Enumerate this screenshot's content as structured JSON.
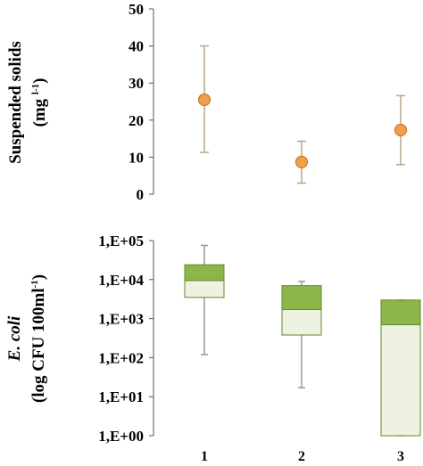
{
  "colors": {
    "marker_fill": "#f0a04b",
    "marker_stroke": "#c97a2a",
    "errorbar": "#b8a58a",
    "box_upper": "#8db54a",
    "box_lower": "#eef3e1",
    "box_stroke": "#5f8a2a",
    "whisker": "#9a9a8a"
  },
  "chart_data": [
    {
      "type": "scatter",
      "panel": "top",
      "ylabel_line1": "Suspended solids",
      "ylabel_line2": "(mg l-1)",
      "ylim": [
        0,
        50
      ],
      "yticks": [
        0,
        10,
        20,
        30,
        40,
        50
      ],
      "ytick_labels": [
        "0",
        "10",
        "20",
        "30",
        "40",
        "50"
      ],
      "categories": [
        "1",
        "2",
        "3"
      ],
      "points": [
        {
          "x": "1",
          "mean": 25.5,
          "low": 11.3,
          "high": 40
        },
        {
          "x": "2",
          "mean": 8.7,
          "low": 3.0,
          "high": 14.3
        },
        {
          "x": "3",
          "mean": 17.3,
          "low": 8.0,
          "high": 26.6
        }
      ],
      "grid": false
    },
    {
      "type": "box",
      "panel": "bottom",
      "ylabel_line1": "E. coli",
      "ylabel_line2": "(log CFU 100ml-1)",
      "yscale": "log",
      "ylim": [
        1,
        100000
      ],
      "yticks": [
        1,
        10,
        100,
        1000,
        10000,
        100000
      ],
      "ytick_labels": [
        "1,E+00",
        "1,E+01",
        "1,E+02",
        "1,E+03",
        "1,E+04",
        "1,E+05"
      ],
      "categories": [
        "1",
        "2",
        "3"
      ],
      "boxes": [
        {
          "x": "1",
          "min": 120,
          "q1": 3500,
          "median": 9500,
          "q3": 24000,
          "max": 75000
        },
        {
          "x": "2",
          "min": 17,
          "q1": 380,
          "median": 1700,
          "q3": 7000,
          "max": 9000
        },
        {
          "x": "3",
          "min": 1,
          "q1": 1,
          "median": 700,
          "q3": 3000,
          "max": 3000
        }
      ],
      "grid": false
    }
  ]
}
